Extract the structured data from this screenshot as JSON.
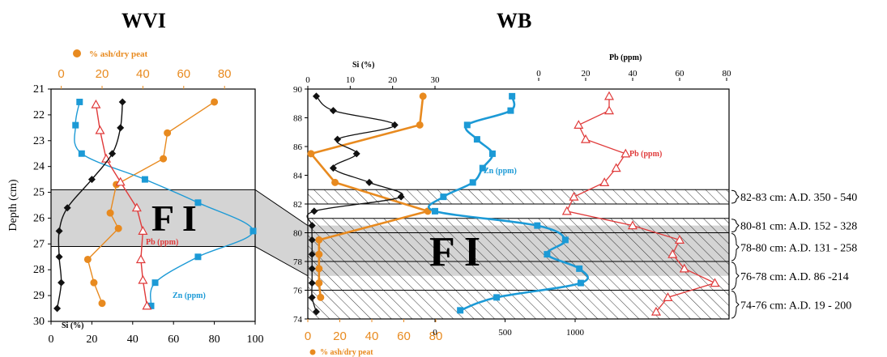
{
  "colors": {
    "ash": "#e88a1f",
    "zn": "#1c9ad6",
    "pb": "#e03a3a",
    "si": "#111111",
    "band": "#d4d4d4"
  },
  "chart_data": [
    {
      "type": "line",
      "title": "WVI",
      "ylabel": "Depth (cm)",
      "ylim": [
        21,
        30
      ],
      "y_ticks": [
        "21",
        "22",
        "23",
        "24",
        "25",
        "26",
        "27",
        "28",
        "29",
        "30"
      ],
      "top_axis": {
        "label": "% ash/dry peat",
        "ticks": [
          "0",
          "20",
          "40",
          "60",
          "80"
        ],
        "range": [
          -5,
          95
        ]
      },
      "bottom_axis": {
        "ticks": [
          "0",
          "20",
          "40",
          "60",
          "80",
          "100"
        ],
        "range": [
          0,
          100
        ]
      },
      "band": {
        "label": "F I",
        "from": 24.9,
        "to": 27.1
      },
      "series": [
        {
          "name": "% ash/dry peat",
          "color": "ash",
          "marker": "circle",
          "axis": "top",
          "points": [
            [
              75,
              21.5
            ],
            [
              52,
              22.7
            ],
            [
              50,
              23.7
            ],
            [
              27,
              24.7
            ],
            [
              24,
              25.8
            ],
            [
              28,
              26.4
            ],
            [
              13,
              27.6
            ],
            [
              16,
              28.5
            ],
            [
              20,
              29.3
            ]
          ]
        },
        {
          "name": "Zn (ppm)",
          "color": "zn",
          "marker": "square",
          "axis": "bottom",
          "points": [
            [
              14,
              21.5
            ],
            [
              12,
              22.4
            ],
            [
              15,
              23.5
            ],
            [
              46,
              24.5
            ],
            [
              72,
              25.4
            ],
            [
              99,
              26.5
            ],
            [
              72,
              27.5
            ],
            [
              51,
              28.5
            ],
            [
              49,
              29.4
            ]
          ]
        },
        {
          "name": "Pb (ppm)",
          "color": "pb",
          "marker": "triangle",
          "axis": "bottom",
          "points": [
            [
              22,
              21.6
            ],
            [
              24,
              22.6
            ],
            [
              27,
              23.7
            ],
            [
              34,
              24.6
            ],
            [
              42,
              25.6
            ],
            [
              45,
              26.5
            ],
            [
              44,
              27.6
            ],
            [
              45,
              28.4
            ],
            [
              47,
              29.4
            ]
          ]
        },
        {
          "name": "Si (%)",
          "color": "si",
          "marker": "diamond",
          "axis": "bottom",
          "points": [
            [
              35,
              21.5
            ],
            [
              34,
              22.5
            ],
            [
              30,
              23.5
            ],
            [
              20,
              24.5
            ],
            [
              8,
              25.6
            ],
            [
              4,
              26.5
            ],
            [
              4,
              27.5
            ],
            [
              5,
              28.5
            ],
            [
              3,
              29.5
            ]
          ]
        }
      ],
      "labels": {
        "si": "Si (%)",
        "pb": "Pb (ppm)",
        "zn": "Zn (ppm)"
      }
    },
    {
      "type": "line",
      "title": "WB",
      "ylim": [
        74,
        90
      ],
      "y_ticks": [
        "90",
        "88",
        "86",
        "84",
        "82",
        "80",
        "78",
        "76",
        "74"
      ],
      "si_axis": {
        "label": "Si (%)",
        "ticks": [
          "0",
          "10",
          "20",
          "30"
        ],
        "range": [
          0,
          35
        ]
      },
      "pb_axis": {
        "label": "Pb (ppm)",
        "ticks": [
          "0",
          "20",
          "40",
          "60",
          "80"
        ]
      },
      "bottom_axis": {
        "label": "% ash/dry peat",
        "ticks": [
          "0",
          "20",
          "40",
          "60",
          "80"
        ]
      },
      "zn_axis": {
        "ticks": [
          "0",
          "500",
          "1000"
        ]
      },
      "band": {
        "label": "F I",
        "from": 77.0,
        "to": 80.5
      },
      "hatched_zones": [
        {
          "from": 82,
          "to": 83,
          "note": "82-83 cm: A.D. 350 - 540"
        },
        {
          "from": 80,
          "to": 81,
          "note": "80-81 cm: A.D. 152 - 328"
        },
        {
          "from": 78,
          "to": 80,
          "note": "78-80 cm: A.D. 131 - 258"
        },
        {
          "from": 76,
          "to": 78,
          "note": "76-78 cm: A.D. 86 -214"
        },
        {
          "from": 74,
          "to": 76,
          "note": "74-76 cm: A.D. 19 - 200"
        }
      ],
      "series": [
        {
          "name": "% ash/dry peat",
          "color": "ash",
          "marker": "circle",
          "points": [
            [
              72,
              89.5
            ],
            [
              70,
              87.5
            ],
            [
              2,
              85.5
            ],
            [
              17,
              83.5
            ],
            [
              75,
              81.5
            ],
            [
              7,
              79.5
            ],
            [
              7,
              78.5
            ],
            [
              7,
              77.5
            ],
            [
              7,
              76.5
            ],
            [
              8,
              75.5
            ]
          ]
        },
        {
          "name": "Zn (ppm)",
          "color": "zn",
          "marker": "square",
          "points": [
            [
              550,
              89.5
            ],
            [
              540,
              88.5
            ],
            [
              230,
              87.5
            ],
            [
              300,
              86.5
            ],
            [
              410,
              85.5
            ],
            [
              340,
              84.5
            ],
            [
              270,
              83.5
            ],
            [
              60,
              82.5
            ],
            [
              0,
              81.5
            ],
            [
              730,
              80.5
            ],
            [
              930,
              79.5
            ],
            [
              800,
              78.5
            ],
            [
              1030,
              77.5
            ],
            [
              1040,
              76.5
            ],
            [
              440,
              75.5
            ],
            [
              180,
              74.6
            ]
          ]
        },
        {
          "name": "Pb (ppm)",
          "color": "pb",
          "marker": "triangle",
          "points": [
            [
              30,
              89.5
            ],
            [
              30,
              88.5
            ],
            [
              17,
              87.5
            ],
            [
              20,
              86.5
            ],
            [
              37,
              85.5
            ],
            [
              33,
              84.5
            ],
            [
              28,
              83.5
            ],
            [
              15,
              82.5
            ],
            [
              12,
              81.5
            ],
            [
              40,
              80.5
            ],
            [
              60,
              79.5
            ],
            [
              57,
              78.5
            ],
            [
              62,
              77.5
            ],
            [
              75,
              76.5
            ],
            [
              55,
              75.5
            ],
            [
              50,
              74.5
            ]
          ]
        },
        {
          "name": "Si (%)",
          "color": "si",
          "marker": "diamond",
          "points": [
            [
              2,
              89.5
            ],
            [
              6,
              88.5
            ],
            [
              20.5,
              87.5
            ],
            [
              7,
              86.5
            ],
            [
              11.5,
              85.5
            ],
            [
              6,
              84.5
            ],
            [
              14.5,
              83.5
            ],
            [
              22,
              82.5
            ],
            [
              1.5,
              81.5
            ],
            [
              1,
              80.5
            ],
            [
              1,
              79.5
            ],
            [
              1,
              78.5
            ],
            [
              1,
              77.5
            ],
            [
              1,
              76.5
            ],
            [
              1,
              75.5
            ],
            [
              2,
              74.5
            ]
          ]
        }
      ],
      "labels": {
        "pb": "Pb (ppm)",
        "zn": "Zn (ppm)"
      }
    }
  ]
}
